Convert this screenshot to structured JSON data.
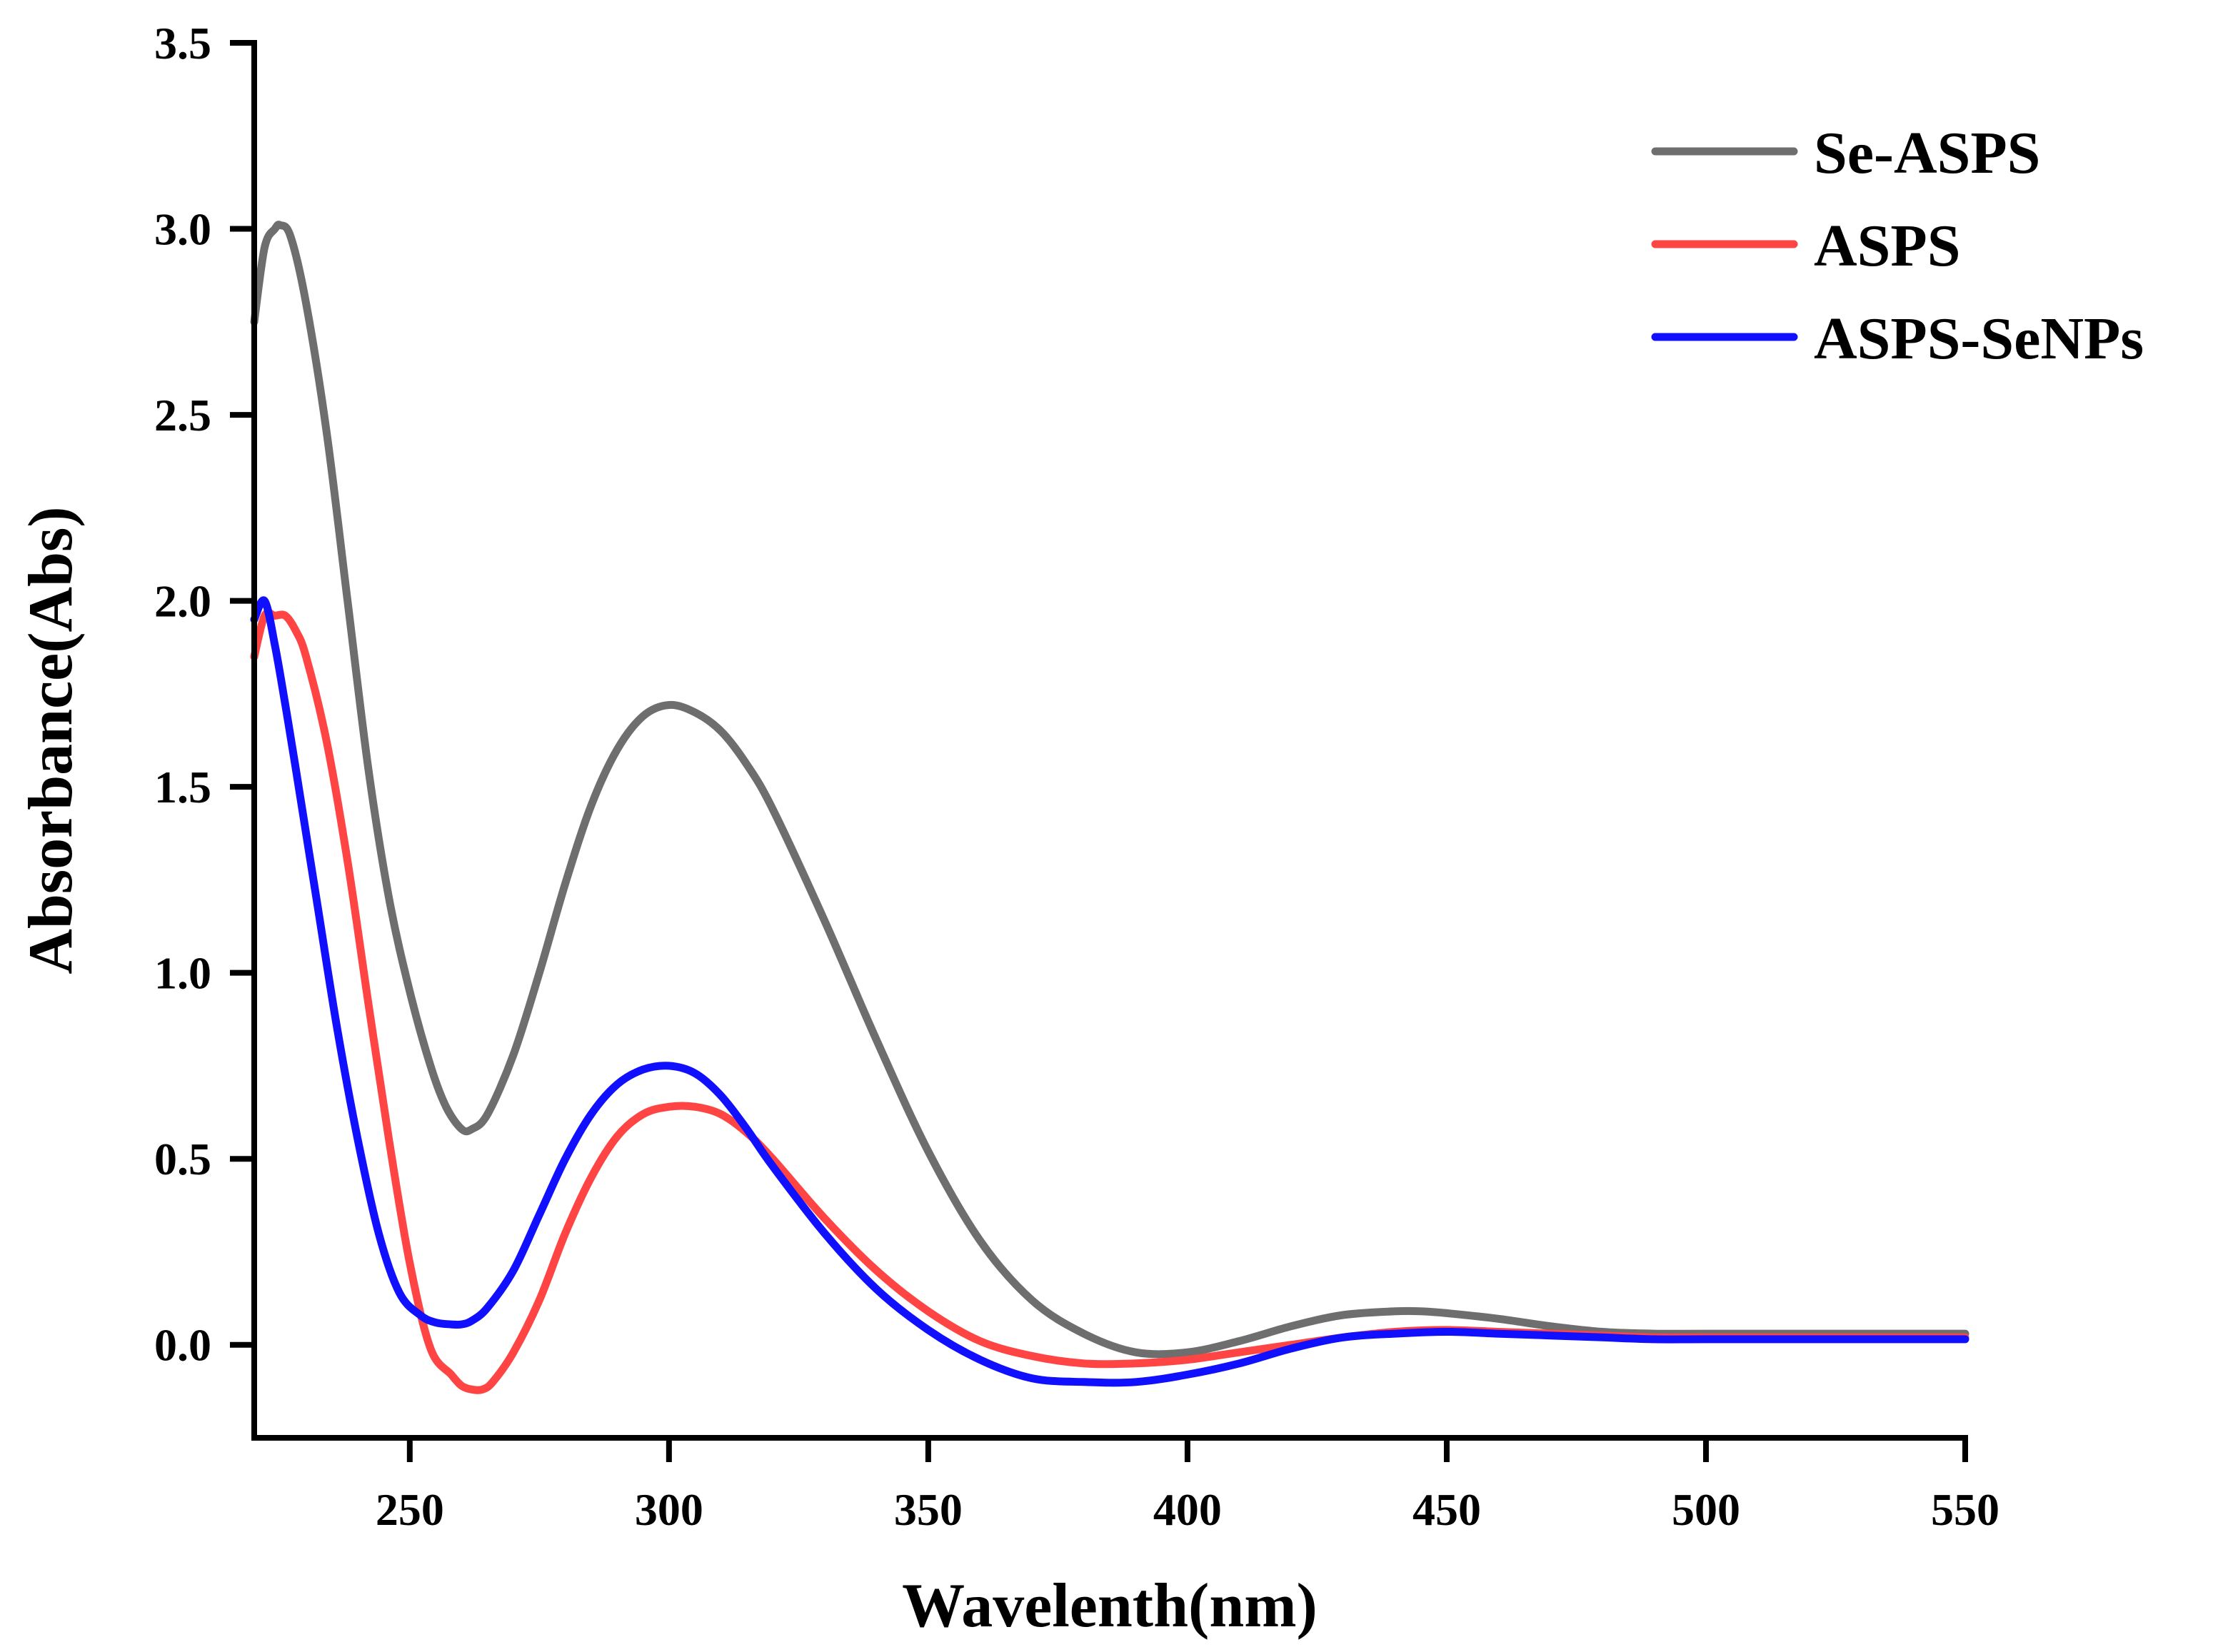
{
  "chart_data": {
    "type": "line",
    "title": "",
    "xlabel": "Wavelenth(nm)",
    "ylabel": "Absorbance(Abs)",
    "xlim": [
      220,
      550
    ],
    "ylim": [
      -0.25,
      3.5
    ],
    "x_ticks": [
      250,
      300,
      350,
      400,
      450,
      500,
      550
    ],
    "x_tick_labels": [
      "250",
      "300",
      "350",
      "400",
      "450",
      "500",
      "550"
    ],
    "y_ticks": [
      0.0,
      0.5,
      1.0,
      1.5,
      2.0,
      2.5,
      3.0,
      3.5
    ],
    "y_tick_labels": [
      "0.0",
      "0.5",
      "1.0",
      "1.5",
      "2.0",
      "2.5",
      "3.0",
      "3.5"
    ],
    "grid": false,
    "legend_position": "top-right",
    "series": [
      {
        "name": "Se-ASPS",
        "color": "#6e6e6e",
        "x": [
          220,
          222,
          224,
          225,
          227,
          230,
          234,
          238,
          242,
          246,
          250,
          254,
          257,
          260,
          262,
          265,
          270,
          275,
          280,
          285,
          290,
          295,
          300,
          305,
          310,
          315,
          320,
          330,
          340,
          350,
          360,
          370,
          380,
          390,
          400,
          410,
          420,
          430,
          440,
          445,
          450,
          460,
          470,
          480,
          490,
          500,
          520,
          550
        ],
        "values": [
          2.75,
          2.95,
          3.0,
          3.01,
          2.98,
          2.8,
          2.45,
          2.0,
          1.55,
          1.2,
          0.95,
          0.75,
          0.64,
          0.58,
          0.58,
          0.62,
          0.78,
          1.0,
          1.24,
          1.45,
          1.6,
          1.69,
          1.72,
          1.7,
          1.65,
          1.56,
          1.44,
          1.14,
          0.82,
          0.52,
          0.28,
          0.12,
          0.03,
          -0.02,
          -0.02,
          0.01,
          0.05,
          0.08,
          0.09,
          0.09,
          0.085,
          0.07,
          0.05,
          0.035,
          0.03,
          0.03,
          0.03,
          0.03
        ]
      },
      {
        "name": "ASPS",
        "color": "#ff4444",
        "x": [
          220,
          222,
          224,
          226,
          228,
          230,
          234,
          238,
          242,
          246,
          250,
          254,
          258,
          260,
          262,
          264,
          266,
          270,
          275,
          280,
          285,
          290,
          295,
          300,
          305,
          310,
          315,
          320,
          330,
          340,
          350,
          360,
          370,
          380,
          390,
          400,
          410,
          420,
          430,
          440,
          450,
          460,
          470,
          480,
          490,
          500,
          520,
          550
        ],
        "values": [
          1.85,
          1.96,
          1.96,
          1.96,
          1.92,
          1.85,
          1.62,
          1.3,
          0.92,
          0.55,
          0.22,
          -0.01,
          -0.08,
          -0.11,
          -0.12,
          -0.12,
          -0.1,
          -0.02,
          0.12,
          0.3,
          0.45,
          0.56,
          0.62,
          0.64,
          0.64,
          0.62,
          0.57,
          0.5,
          0.34,
          0.2,
          0.09,
          0.01,
          -0.03,
          -0.05,
          -0.05,
          -0.04,
          -0.02,
          0.0,
          0.02,
          0.035,
          0.04,
          0.035,
          0.03,
          0.025,
          0.02,
          0.02,
          0.02,
          0.02
        ]
      },
      {
        "name": "ASPS-SeNPs",
        "color": "#1010ff",
        "x": [
          220,
          222,
          224,
          226,
          228,
          232,
          236,
          240,
          244,
          248,
          252,
          255,
          258,
          260,
          262,
          265,
          270,
          275,
          280,
          285,
          290,
          295,
          300,
          305,
          310,
          315,
          320,
          330,
          340,
          350,
          360,
          370,
          380,
          390,
          400,
          410,
          420,
          430,
          440,
          450,
          460,
          470,
          480,
          490,
          500,
          520,
          550
        ],
        "values": [
          1.95,
          2.0,
          1.88,
          1.72,
          1.55,
          1.2,
          0.85,
          0.55,
          0.3,
          0.14,
          0.08,
          0.06,
          0.055,
          0.055,
          0.065,
          0.1,
          0.2,
          0.35,
          0.5,
          0.62,
          0.7,
          0.74,
          0.75,
          0.73,
          0.67,
          0.58,
          0.48,
          0.3,
          0.15,
          0.04,
          -0.04,
          -0.09,
          -0.1,
          -0.1,
          -0.08,
          -0.05,
          -0.01,
          0.02,
          0.03,
          0.035,
          0.03,
          0.025,
          0.02,
          0.015,
          0.015,
          0.015,
          0.015
        ]
      }
    ]
  }
}
